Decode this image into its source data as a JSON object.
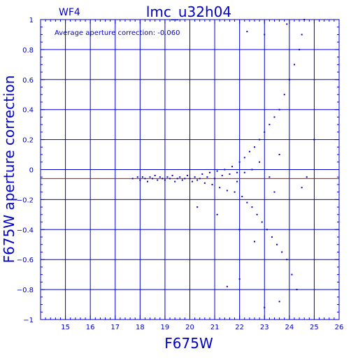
{
  "colors": {
    "axis": "#0000cc",
    "grid": "#0000cc",
    "points": "#0000cc",
    "reference_line": "#cc0000",
    "background": "#ffffff"
  },
  "chart_data": {
    "type": "scatter",
    "title": "lmc_u32h04",
    "subtitle": "WF4",
    "annotation": "Average aperture correction: -0.060",
    "xlabel": "F675W",
    "ylabel": "F675W aperture correction",
    "xlim": [
      14,
      26
    ],
    "ylim": [
      -1,
      1
    ],
    "x_ticks": [
      15,
      16,
      17,
      18,
      19,
      20,
      21,
      22,
      23,
      24,
      25,
      26
    ],
    "y_ticks": [
      -1,
      -0.8,
      -0.6,
      -0.4,
      -0.2,
      0,
      0.2,
      0.4,
      0.6,
      0.8,
      1
    ],
    "y_tick_labels": [
      "−1",
      "−0.8",
      "−0.6",
      "−0.4",
      "−0.2",
      "0",
      "0.2",
      "0.4",
      "0.6",
      "0.8",
      "1"
    ],
    "grid": true,
    "reference_line": {
      "y": -0.06
    },
    "series": [
      {
        "points": [
          [
            17.7,
            -0.06
          ],
          [
            17.9,
            -0.05
          ],
          [
            18.0,
            -0.07
          ],
          [
            18.1,
            -0.05
          ],
          [
            18.2,
            -0.06
          ],
          [
            18.3,
            -0.08
          ],
          [
            18.4,
            -0.05
          ],
          [
            18.5,
            -0.06
          ],
          [
            18.6,
            -0.04
          ],
          [
            18.7,
            -0.07
          ],
          [
            18.8,
            -0.05
          ],
          [
            18.9,
            -0.06
          ],
          [
            19.0,
            -0.07
          ],
          [
            19.1,
            -0.05
          ],
          [
            19.2,
            -0.06
          ],
          [
            19.3,
            -0.04
          ],
          [
            19.4,
            -0.08
          ],
          [
            19.5,
            -0.06
          ],
          [
            19.6,
            -0.05
          ],
          [
            19.7,
            -0.07
          ],
          [
            19.8,
            -0.06
          ],
          [
            19.9,
            -0.04
          ],
          [
            20.0,
            -0.06
          ],
          [
            20.1,
            -0.08
          ],
          [
            20.2,
            -0.05
          ],
          [
            20.3,
            -0.07
          ],
          [
            20.4,
            -0.06
          ],
          [
            20.5,
            -0.03
          ],
          [
            20.6,
            -0.09
          ],
          [
            20.7,
            -0.05
          ],
          [
            20.8,
            -0.02
          ],
          [
            20.9,
            -0.1
          ],
          [
            21.0,
            -0.06
          ],
          [
            21.1,
            -0.01
          ],
          [
            21.2,
            -0.12
          ],
          [
            21.3,
            -0.04
          ],
          [
            21.4,
            0.0
          ],
          [
            21.5,
            -0.14
          ],
          [
            21.6,
            -0.03
          ],
          [
            21.7,
            0.02
          ],
          [
            21.8,
            -0.15
          ],
          [
            21.9,
            -0.02
          ],
          [
            22.0,
            0.05
          ],
          [
            22.1,
            -0.18
          ],
          [
            22.2,
            0.08
          ],
          [
            22.3,
            -0.22
          ],
          [
            22.4,
            0.12
          ],
          [
            22.5,
            -0.25
          ],
          [
            22.6,
            0.15
          ],
          [
            22.7,
            -0.3
          ],
          [
            22.8,
            0.2
          ],
          [
            22.9,
            -0.35
          ],
          [
            23.0,
            0.25
          ],
          [
            23.1,
            -0.4
          ],
          [
            23.2,
            0.3
          ],
          [
            23.3,
            -0.45
          ],
          [
            23.4,
            0.35
          ],
          [
            23.5,
            -0.5
          ],
          [
            23.6,
            0.4
          ],
          [
            23.7,
            -0.55
          ],
          [
            23.8,
            0.5
          ],
          [
            23.9,
            -0.6
          ],
          [
            24.0,
            0.6
          ],
          [
            24.1,
            -0.7
          ],
          [
            24.2,
            0.7
          ],
          [
            24.3,
            -0.8
          ],
          [
            24.4,
            0.8
          ],
          [
            24.5,
            0.9
          ],
          [
            22.3,
            0.92
          ],
          [
            23.0,
            0.9
          ],
          [
            23.9,
            0.97
          ],
          [
            24.6,
            1.0
          ],
          [
            21.5,
            -0.78
          ],
          [
            22.0,
            -0.73
          ],
          [
            23.0,
            -0.92
          ],
          [
            23.6,
            -0.88
          ],
          [
            20.3,
            -0.25
          ],
          [
            21.1,
            -0.3
          ],
          [
            24.5,
            -0.12
          ],
          [
            25.0,
            0.2
          ],
          [
            24.7,
            -0.05
          ],
          [
            22.6,
            -0.48
          ],
          [
            22.0,
            -0.4
          ],
          [
            23.4,
            -0.15
          ],
          [
            22.8,
            0.05
          ],
          [
            23.2,
            -0.05
          ],
          [
            22.5,
            0.0
          ],
          [
            21.9,
            -0.08
          ],
          [
            22.2,
            -0.02
          ],
          [
            23.6,
            0.1
          ]
        ]
      }
    ]
  }
}
